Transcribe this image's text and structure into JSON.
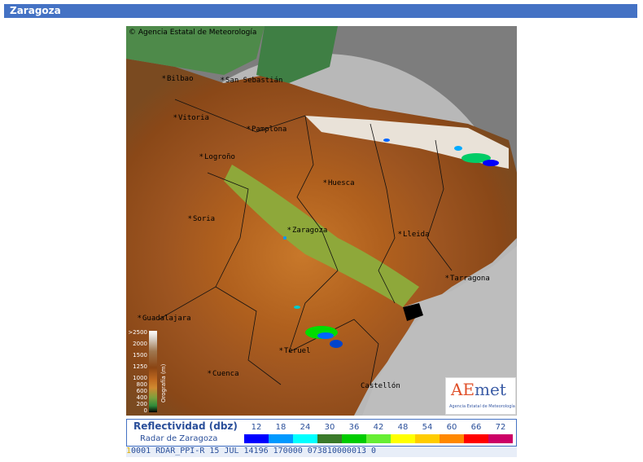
{
  "header": {
    "title": "Zaragoza"
  },
  "map": {
    "copyright": "Agencia Estatal de Meteorología",
    "cities": [
      {
        "name": "Bilbao"
      },
      {
        "name": "San Sebastián"
      },
      {
        "name": "Vitoria"
      },
      {
        "name": "Pamplona"
      },
      {
        "name": "Logroño"
      },
      {
        "name": "Huesca"
      },
      {
        "name": "Soria"
      },
      {
        "name": "Zaragoza"
      },
      {
        "name": "Lleida"
      },
      {
        "name": "Tarragona"
      },
      {
        "name": "Guadalajara"
      },
      {
        "name": "Teruel"
      },
      {
        "name": "Cuenca"
      },
      {
        "name": "Castellón"
      }
    ]
  },
  "orography": {
    "title": "Orografía (m)",
    "ticks": [
      ">2500",
      "2000",
      "1500",
      "1250",
      "1000",
      "800",
      "600",
      "400",
      "200",
      "0"
    ]
  },
  "logo": {
    "name_a": "AE",
    "name_b": "met",
    "subtitle": "Agencia Estatal de Meteorología"
  },
  "reflectivity": {
    "title": "Reflectividad (dbz)",
    "radar": "Radar de Zaragoza",
    "scale": [
      {
        "value": "12",
        "color": "#0000ff"
      },
      {
        "value": "18",
        "color": "#0099ff"
      },
      {
        "value": "24",
        "color": "#00ffff"
      },
      {
        "value": "30",
        "color": "#3a7a2a"
      },
      {
        "value": "36",
        "color": "#00cc00"
      },
      {
        "value": "42",
        "color": "#66ee33"
      },
      {
        "value": "48",
        "color": "#ffff00"
      },
      {
        "value": "54",
        "color": "#ffcc00"
      },
      {
        "value": "60",
        "color": "#ff8800"
      },
      {
        "value": "66",
        "color": "#ff0000"
      },
      {
        "value": "72",
        "color": "#cc0066"
      }
    ]
  },
  "data_line": {
    "first": "1",
    "rest": "0001 RDAR_PPI-R   15 JUL 14196 170000 073810000013 0"
  }
}
